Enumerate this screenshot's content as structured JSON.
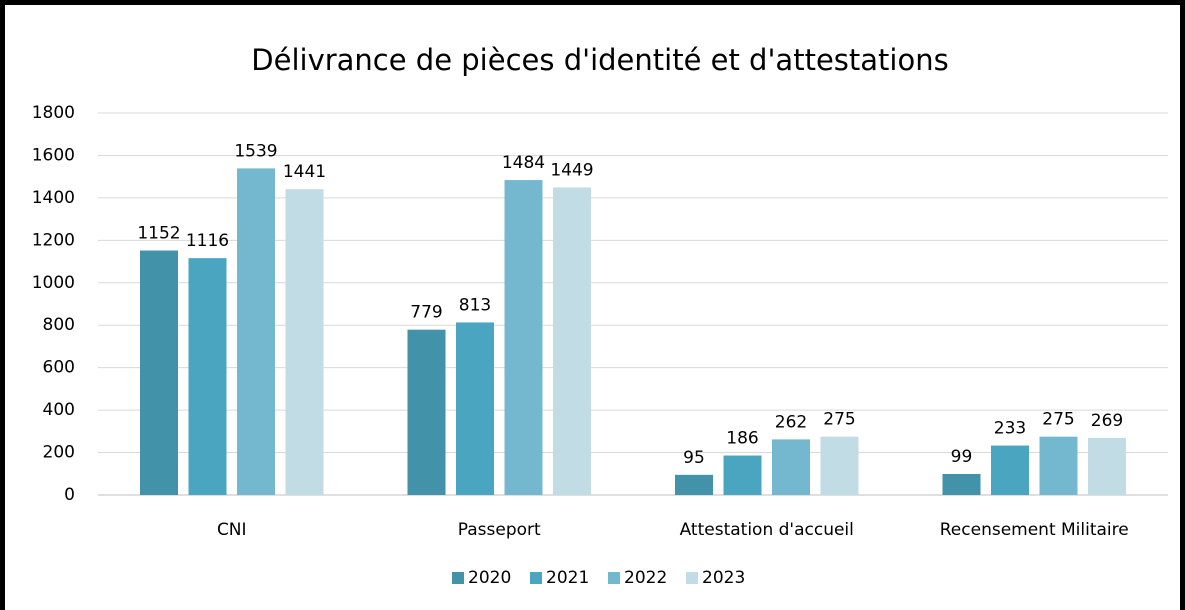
{
  "chart_data": {
    "type": "bar",
    "title": "Délivrance de pièces d'identité et d'attestations",
    "categories": [
      "CNI",
      "Passeport",
      "Attestation d'accueil",
      "Recensement Militaire"
    ],
    "series": [
      {
        "name": "2020",
        "color": "#4292a9",
        "values": [
          1152,
          779,
          95,
          99
        ]
      },
      {
        "name": "2021",
        "color": "#4aa5c0",
        "values": [
          1116,
          813,
          186,
          233
        ]
      },
      {
        "name": "2022",
        "color": "#73b8cf",
        "values": [
          1539,
          1484,
          262,
          275
        ]
      },
      {
        "name": "2023",
        "color": "#c1dce5",
        "values": [
          1441,
          1449,
          275,
          269
        ]
      }
    ],
    "ylim": [
      0,
      1800
    ],
    "yticks": [
      0,
      200,
      400,
      600,
      800,
      1000,
      1200,
      1400,
      1600,
      1800
    ],
    "grid": true,
    "legend": "bottom"
  }
}
